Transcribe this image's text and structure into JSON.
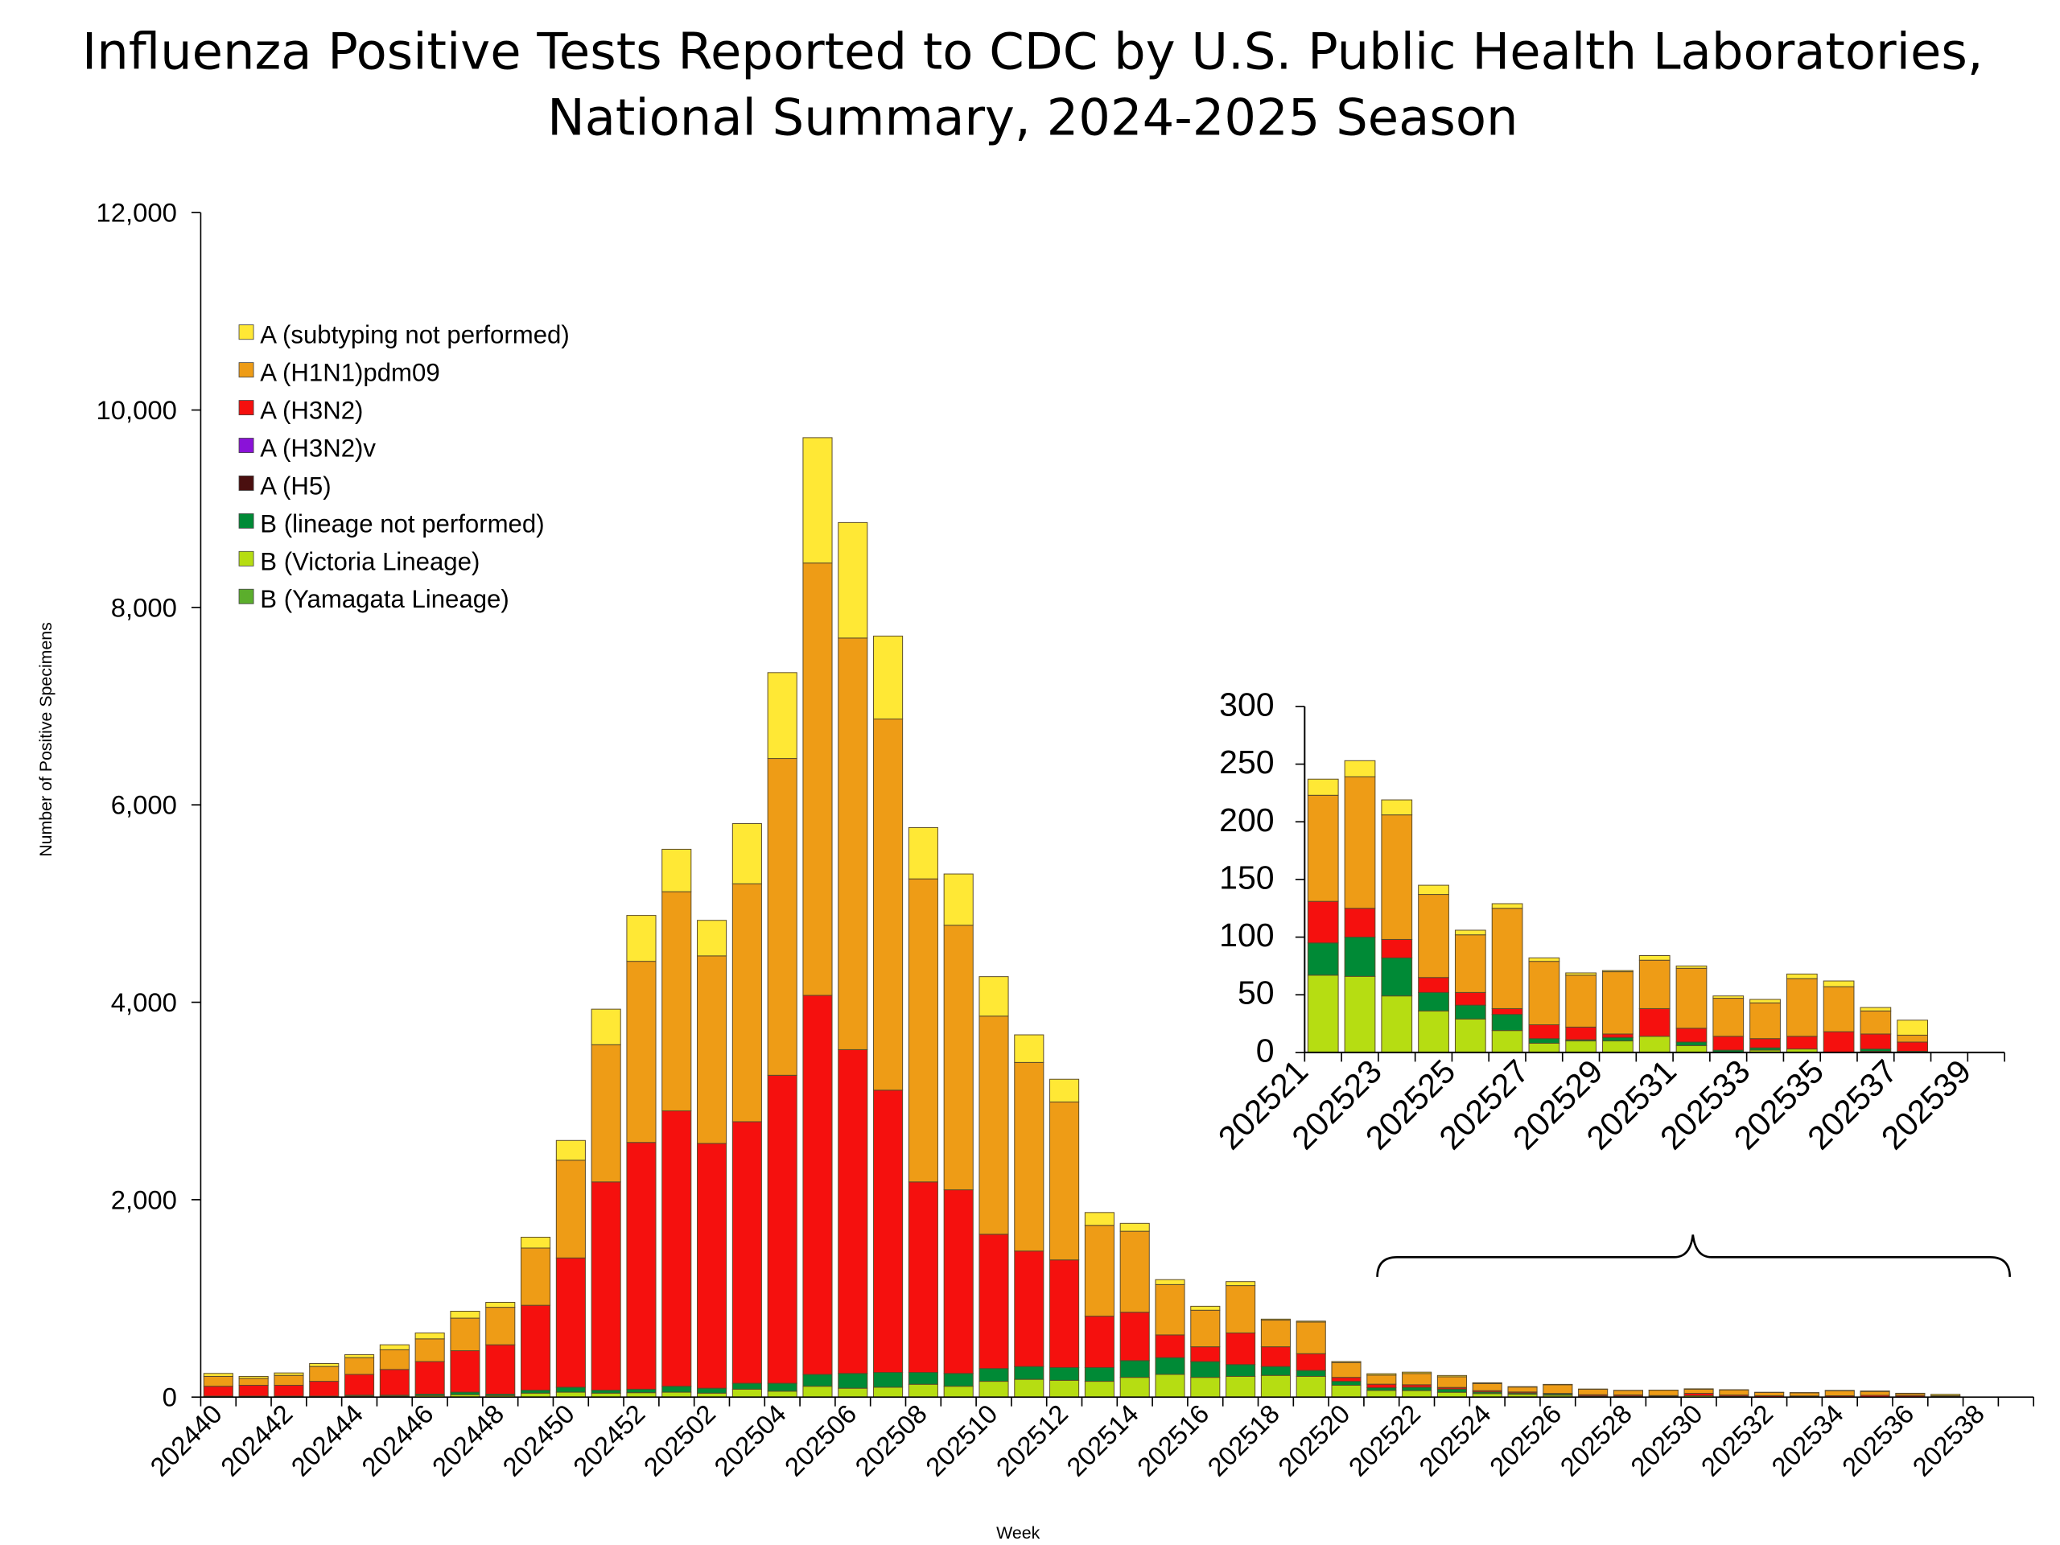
{
  "title_line1": "Influenza Positive Tests Reported to CDC by U.S. Public Health Laboratories,",
  "title_line2": "National Summary, 2024-2025 Season",
  "chart_data": [
    {
      "type": "bar",
      "stacked": true,
      "xlabel": "Week",
      "ylabel": "Number of Positive Specimens",
      "ylim": [
        0,
        12000
      ],
      "yticks": [
        "0",
        "2,000",
        "4,000",
        "6,000",
        "8,000",
        "10,000",
        "12,000"
      ],
      "ytick_values": [
        0,
        2000,
        4000,
        6000,
        8000,
        10000,
        12000
      ],
      "legend_position": "upper-left",
      "grid": false,
      "categories": [
        "202440",
        "202441",
        "202442",
        "202443",
        "202444",
        "202445",
        "202446",
        "202447",
        "202448",
        "202449",
        "202450",
        "202451",
        "202452",
        "202501",
        "202502",
        "202503",
        "202504",
        "202505",
        "202506",
        "202507",
        "202508",
        "202509",
        "202510",
        "202511",
        "202512",
        "202513",
        "202514",
        "202515",
        "202516",
        "202517",
        "202518",
        "202519",
        "202520",
        "202521",
        "202522",
        "202523",
        "202524",
        "202525",
        "202526",
        "202527",
        "202528",
        "202529",
        "202530",
        "202531",
        "202532",
        "202533",
        "202534",
        "202535",
        "202536",
        "202537",
        "202538",
        "202539"
      ],
      "xtick_labels": [
        "202440",
        "202442",
        "202444",
        "202446",
        "202448",
        "202450",
        "202452",
        "202502",
        "202504",
        "202506",
        "202508",
        "202510",
        "202512",
        "202514",
        "202516",
        "202518",
        "202520",
        "202522",
        "202524",
        "202526",
        "202528",
        "202530",
        "202532",
        "202534",
        "202536",
        "202538"
      ],
      "series": [
        {
          "name": "B (Yamagata Lineage)",
          "color": "#5BAE2C",
          "values": [
            0,
            0,
            0,
            0,
            0,
            0,
            0,
            0,
            0,
            0,
            0,
            0,
            0,
            0,
            0,
            0,
            0,
            0,
            0,
            0,
            0,
            0,
            0,
            0,
            0,
            0,
            0,
            0,
            0,
            0,
            0,
            0,
            0,
            0,
            0,
            0,
            0,
            0,
            0,
            0,
            0,
            0,
            0,
            0,
            0,
            0,
            0,
            0,
            0,
            0,
            0,
            0
          ]
        },
        {
          "name": "B (Victoria Lineage)",
          "color": "#B6DD12",
          "values": [
            5,
            5,
            5,
            5,
            10,
            10,
            15,
            25,
            15,
            40,
            50,
            40,
            45,
            50,
            40,
            80,
            60,
            110,
            90,
            100,
            130,
            110,
            160,
            180,
            170,
            160,
            200,
            230,
            200,
            210,
            220,
            210,
            120,
            67,
            66,
            49,
            36,
            29,
            19,
            8,
            10,
            10,
            14,
            6,
            0,
            2,
            3,
            0,
            1,
            0,
            0,
            0
          ]
        },
        {
          "name": "B (lineage not performed)",
          "color": "#008A36",
          "values": [
            5,
            5,
            5,
            5,
            10,
            10,
            15,
            25,
            15,
            30,
            50,
            30,
            35,
            60,
            50,
            60,
            80,
            120,
            150,
            150,
            120,
            130,
            130,
            130,
            130,
            140,
            170,
            170,
            160,
            120,
            90,
            60,
            40,
            28,
            34,
            33,
            16,
            12,
            14,
            4,
            1,
            3,
            0,
            3,
            2,
            2,
            0,
            0,
            2,
            1,
            0,
            0
          ]
        },
        {
          "name": "A (H5)",
          "color": "#4A0F0F",
          "values": [
            0,
            0,
            0,
            0,
            0,
            0,
            0,
            0,
            0,
            0,
            0,
            0,
            0,
            0,
            0,
            0,
            0,
            0,
            0,
            0,
            0,
            0,
            0,
            0,
            0,
            0,
            0,
            0,
            0,
            0,
            0,
            0,
            0,
            0,
            0,
            0,
            0,
            0,
            0,
            0,
            0,
            0,
            0,
            0,
            0,
            0,
            0,
            0,
            0,
            0,
            0,
            0
          ]
        },
        {
          "name": "A (H3N2)v",
          "color": "#8A12D8",
          "values": [
            0,
            0,
            0,
            0,
            0,
            0,
            0,
            0,
            0,
            0,
            0,
            0,
            0,
            0,
            0,
            0,
            0,
            0,
            0,
            0,
            0,
            0,
            0,
            0,
            0,
            0,
            0,
            0,
            0,
            0,
            0,
            0,
            0,
            0,
            0,
            0,
            0,
            0,
            0,
            0,
            0,
            0,
            0,
            0,
            0,
            0,
            0,
            0,
            0,
            0,
            0,
            0
          ]
        },
        {
          "name": "A (H3N2)",
          "color": "#F5100E",
          "values": [
            100,
            110,
            110,
            150,
            210,
            260,
            330,
            420,
            500,
            860,
            1310,
            2110,
            2500,
            2790,
            2480,
            2650,
            3120,
            3840,
            3280,
            2860,
            1930,
            1860,
            1360,
            1170,
            1090,
            520,
            490,
            230,
            150,
            320,
            200,
            170,
            40,
            36,
            25,
            16,
            13,
            11,
            5,
            12,
            11,
            3,
            24,
            12,
            12,
            8,
            11,
            18,
            13,
            8,
            0,
            0
          ]
        },
        {
          "name": "A (H1N1)pdm09",
          "color": "#EE9C16",
          "values": [
            100,
            70,
            100,
            150,
            170,
            200,
            230,
            330,
            380,
            580,
            990,
            1390,
            1835,
            2220,
            1900,
            2410,
            3210,
            4380,
            4170,
            3760,
            3070,
            2680,
            2210,
            1910,
            1600,
            920,
            820,
            510,
            370,
            480,
            270,
            320,
            150,
            92,
            114,
            108,
            72,
            50,
            87,
            55,
            45,
            54,
            42,
            52,
            33,
            31,
            50,
            39,
            20,
            6,
            0,
            0
          ]
        },
        {
          "name": "A (subtyping not performed)",
          "color": "#FFE835",
          "values": [
            30,
            20,
            25,
            30,
            30,
            50,
            60,
            70,
            50,
            110,
            200,
            360,
            465,
            430,
            360,
            610,
            870,
            1270,
            1170,
            840,
            520,
            520,
            400,
            280,
            230,
            130,
            80,
            50,
            40,
            40,
            10,
            10,
            10,
            14,
            14,
            13,
            8,
            4,
            4,
            3,
            2,
            1,
            4,
            2,
            2,
            3,
            4,
            5,
            3,
            13,
            0,
            0
          ]
        }
      ]
    },
    {
      "type": "bar",
      "stacked": true,
      "note_inset_of": "202521-202539",
      "ylim": [
        0,
        300
      ],
      "yticks": [
        "0",
        "50",
        "100",
        "150",
        "200",
        "250",
        "300"
      ],
      "ytick_values": [
        0,
        50,
        100,
        150,
        200,
        250,
        300
      ],
      "xtick_labels": [
        "202521",
        "202523",
        "202525",
        "202527",
        "202529",
        "202531",
        "202533",
        "202535",
        "202537",
        "202539"
      ],
      "x_start_week": "202521",
      "x_end_week": "202539"
    }
  ],
  "legend": [
    {
      "label": "A (subtyping not performed)",
      "color": "#FFE835"
    },
    {
      "label": "A (H1N1)pdm09",
      "color": "#EE9C16"
    },
    {
      "label": "A (H3N2)",
      "color": "#F5100E"
    },
    {
      "label": "A (H3N2)v",
      "color": "#8A12D8"
    },
    {
      "label": "A (H5)",
      "color": "#4A0F0F"
    },
    {
      "label": "B (lineage not performed)",
      "color": "#008A36"
    },
    {
      "label": "B (Victoria Lineage)",
      "color": "#B6DD12"
    },
    {
      "label": "B (Yamagata Lineage)",
      "color": "#5BAE2C"
    }
  ]
}
